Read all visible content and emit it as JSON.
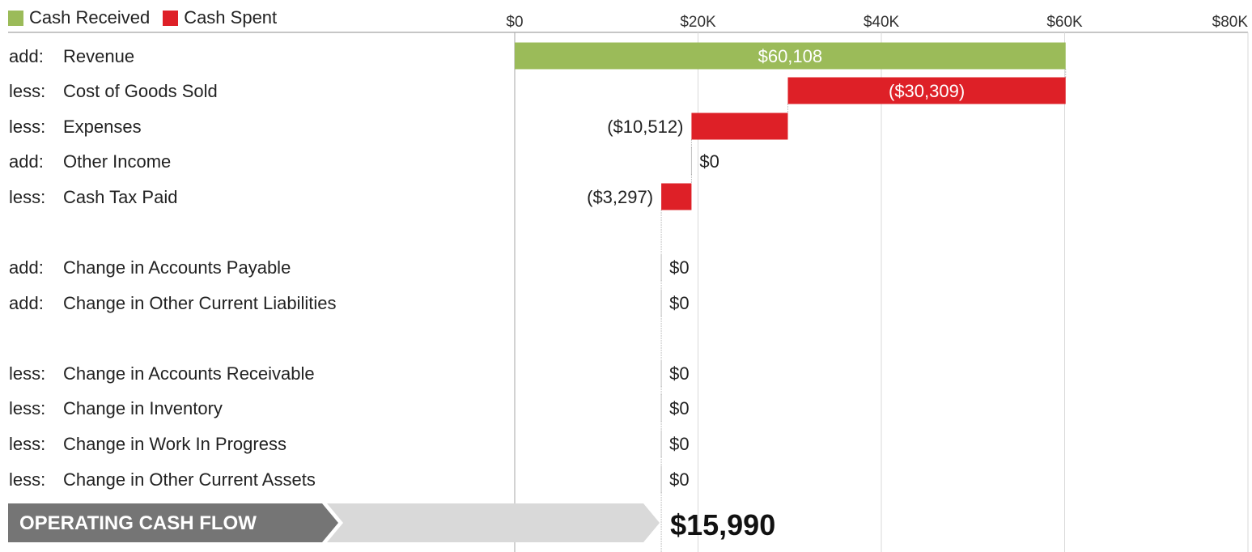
{
  "legend": {
    "received_label": "Cash Received",
    "spent_label": "Cash Spent"
  },
  "colors": {
    "received": "#9bbb59",
    "spent": "#de2027",
    "grid": "#d9d9d9",
    "axis": "#8c8c8c",
    "banner_dark": "#757575",
    "banner_light": "#d9d9d9"
  },
  "chart_data": {
    "type": "bar",
    "subtype": "waterfall",
    "xlim": [
      0,
      80000
    ],
    "ticks": [
      0,
      20000,
      40000,
      60000,
      80000
    ],
    "tick_labels": [
      "$0",
      "$20K",
      "$40K",
      "$60K",
      "$80K"
    ],
    "grid": true,
    "legend_position": "top-left",
    "rows": [
      {
        "prefix": "add:",
        "label": "Revenue",
        "value": 60108,
        "start": 0,
        "end": 60108,
        "value_label": "$60,108"
      },
      {
        "prefix": "less:",
        "label": "Cost of Goods Sold",
        "value": -30309,
        "start": 60108,
        "end": 29799,
        "value_label": "($30,309)"
      },
      {
        "prefix": "less:",
        "label": "Expenses",
        "value": -10512,
        "start": 29799,
        "end": 19287,
        "value_label": "($10,512)"
      },
      {
        "prefix": "add:",
        "label": "Other Income",
        "value": 0,
        "start": 19287,
        "end": 19287,
        "value_label": "$0"
      },
      {
        "prefix": "less:",
        "label": "Cash Tax Paid",
        "value": -3297,
        "start": 19287,
        "end": 15990,
        "value_label": "($3,297)"
      },
      {
        "prefix": "add:",
        "label": "Change in Accounts Payable",
        "value": 0,
        "start": 15990,
        "end": 15990,
        "value_label": "$0"
      },
      {
        "prefix": "add:",
        "label": "Change in Other Current Liabilities",
        "value": 0,
        "start": 15990,
        "end": 15990,
        "value_label": "$0"
      },
      {
        "prefix": "less:",
        "label": "Change in Accounts Receivable",
        "value": 0,
        "start": 15990,
        "end": 15990,
        "value_label": "$0"
      },
      {
        "prefix": "less:",
        "label": "Change in Inventory",
        "value": 0,
        "start": 15990,
        "end": 15990,
        "value_label": "$0"
      },
      {
        "prefix": "less:",
        "label": "Change in Work In Progress",
        "value": 0,
        "start": 15990,
        "end": 15990,
        "value_label": "$0"
      },
      {
        "prefix": "less:",
        "label": "Change in Other Current Assets",
        "value": 0,
        "start": 15990,
        "end": 15990,
        "value_label": "$0"
      }
    ],
    "total": {
      "label": "OPERATING CASH FLOW",
      "value": 15990,
      "value_label": "$15,990"
    }
  }
}
